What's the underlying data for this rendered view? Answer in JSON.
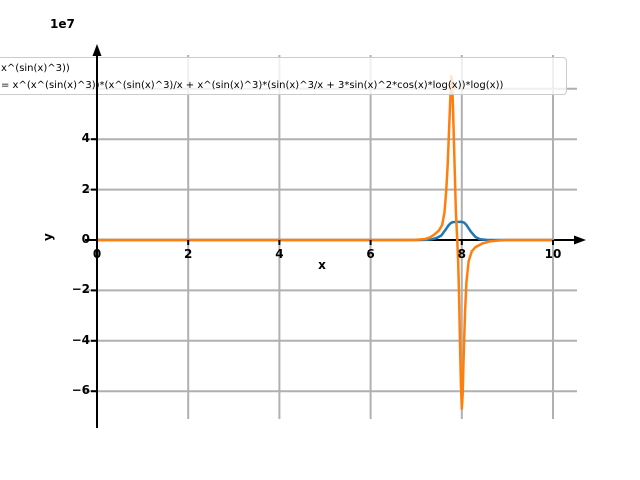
{
  "figure": {
    "offset_text": "1e7",
    "xlabel": "x",
    "ylabel": "y"
  },
  "legend": {
    "rows": [
      "x^(sin(x)^3))",
      "= x^(x^(sin(x)^3))*(x^(sin(x)^3)/x + x^(sin(x)^3)*(sin(x)^3/x + 3*sin(x)^2*cos(x)*log(x))*log(x))"
    ]
  },
  "colors": {
    "blue_curve": "#1f77b4",
    "orange_curve": "#ff7f0e",
    "grid": "#b0b0b0",
    "axis": "#000000"
  },
  "chart_data": {
    "type": "line",
    "title": "",
    "xlabel": "x",
    "ylabel": "y",
    "y_offset_factor": "1e7",
    "grid": true,
    "legend_position": "upper left, clipped off left edge",
    "xlim": [
      -0.3,
      10.7
    ],
    "ylim_in_1e7": [
      -7.1,
      7.3
    ],
    "xticks": [
      0,
      2,
      4,
      6,
      8,
      10
    ],
    "x_tick_labels": [
      "0",
      "2",
      "4",
      "6",
      "8",
      "10"
    ],
    "ygrid_values_in_1e7": [
      6,
      4,
      2,
      0,
      -2,
      -4,
      -6
    ],
    "yticks_visible_in_1e7": [
      4,
      2,
      0,
      -2,
      -4,
      -6
    ],
    "y_tick_labels": [
      "4",
      "2",
      "0",
      "−2",
      "−4",
      "−6"
    ],
    "series": [
      {
        "name": "blue-curve",
        "legend_row": "x^(sin(x)^3))",
        "color": "#1f77b4",
        "points_x_y1e7": [
          [
            0,
            0
          ],
          [
            1,
            0
          ],
          [
            2,
            0
          ],
          [
            3,
            0
          ],
          [
            4,
            0
          ],
          [
            5,
            0
          ],
          [
            6,
            0
          ],
          [
            6.5,
            0
          ],
          [
            7,
            0
          ],
          [
            7.2,
            0.005
          ],
          [
            7.35,
            0.03
          ],
          [
            7.45,
            0.08
          ],
          [
            7.55,
            0.18
          ],
          [
            7.65,
            0.42
          ],
          [
            7.7,
            0.56
          ],
          [
            7.75,
            0.66
          ],
          [
            7.8,
            0.71
          ],
          [
            7.9,
            0.72
          ],
          [
            8.0,
            0.72
          ],
          [
            8.05,
            0.69
          ],
          [
            8.1,
            0.6
          ],
          [
            8.2,
            0.33
          ],
          [
            8.3,
            0.12
          ],
          [
            8.4,
            0.03
          ],
          [
            8.55,
            0.005
          ],
          [
            8.8,
            0
          ],
          [
            9,
            0
          ],
          [
            9.5,
            0
          ],
          [
            10,
            0
          ]
        ]
      },
      {
        "name": "orange-curve",
        "legend_row": "= x^(x^(sin(x)^3))*(x^(sin(x)^3)/x + x^(sin(x)^3)*(sin(x)^3/x + 3*sin(x)^2*cos(x)*log(x))*log(x))",
        "color": "#ff7f0e",
        "points_x_y1e7": [
          [
            0,
            0
          ],
          [
            0.5,
            0
          ],
          [
            1,
            0
          ],
          [
            1.5,
            0
          ],
          [
            2,
            0
          ],
          [
            3,
            0
          ],
          [
            4,
            0
          ],
          [
            5,
            0
          ],
          [
            6,
            0
          ],
          [
            6.5,
            0
          ],
          [
            6.8,
            0.005
          ],
          [
            7.0,
            0.01
          ],
          [
            7.2,
            0.04
          ],
          [
            7.3,
            0.1
          ],
          [
            7.4,
            0.22
          ],
          [
            7.5,
            0.38
          ],
          [
            7.57,
            0.6
          ],
          [
            7.62,
            1.1
          ],
          [
            7.66,
            2.0
          ],
          [
            7.69,
            3.0
          ],
          [
            7.72,
            4.3
          ],
          [
            7.75,
            5.7
          ],
          [
            7.77,
            6.5
          ],
          [
            7.79,
            6.25
          ],
          [
            7.81,
            5.1
          ],
          [
            7.84,
            3.1
          ],
          [
            7.87,
            1.1
          ],
          [
            7.9,
            0.05
          ],
          [
            7.92,
            -0.9
          ],
          [
            7.94,
            -2.3
          ],
          [
            7.96,
            -4.1
          ],
          [
            7.98,
            -5.7
          ],
          [
            8.0,
            -6.7
          ],
          [
            8.02,
            -6.1
          ],
          [
            8.04,
            -4.7
          ],
          [
            8.07,
            -2.9
          ],
          [
            8.1,
            -1.7
          ],
          [
            8.15,
            -0.85
          ],
          [
            8.22,
            -0.45
          ],
          [
            8.3,
            -0.28
          ],
          [
            8.45,
            -0.14
          ],
          [
            8.6,
            -0.06
          ],
          [
            8.8,
            -0.02
          ],
          [
            9,
            0
          ],
          [
            9.5,
            0
          ],
          [
            10,
            0
          ]
        ]
      }
    ]
  }
}
